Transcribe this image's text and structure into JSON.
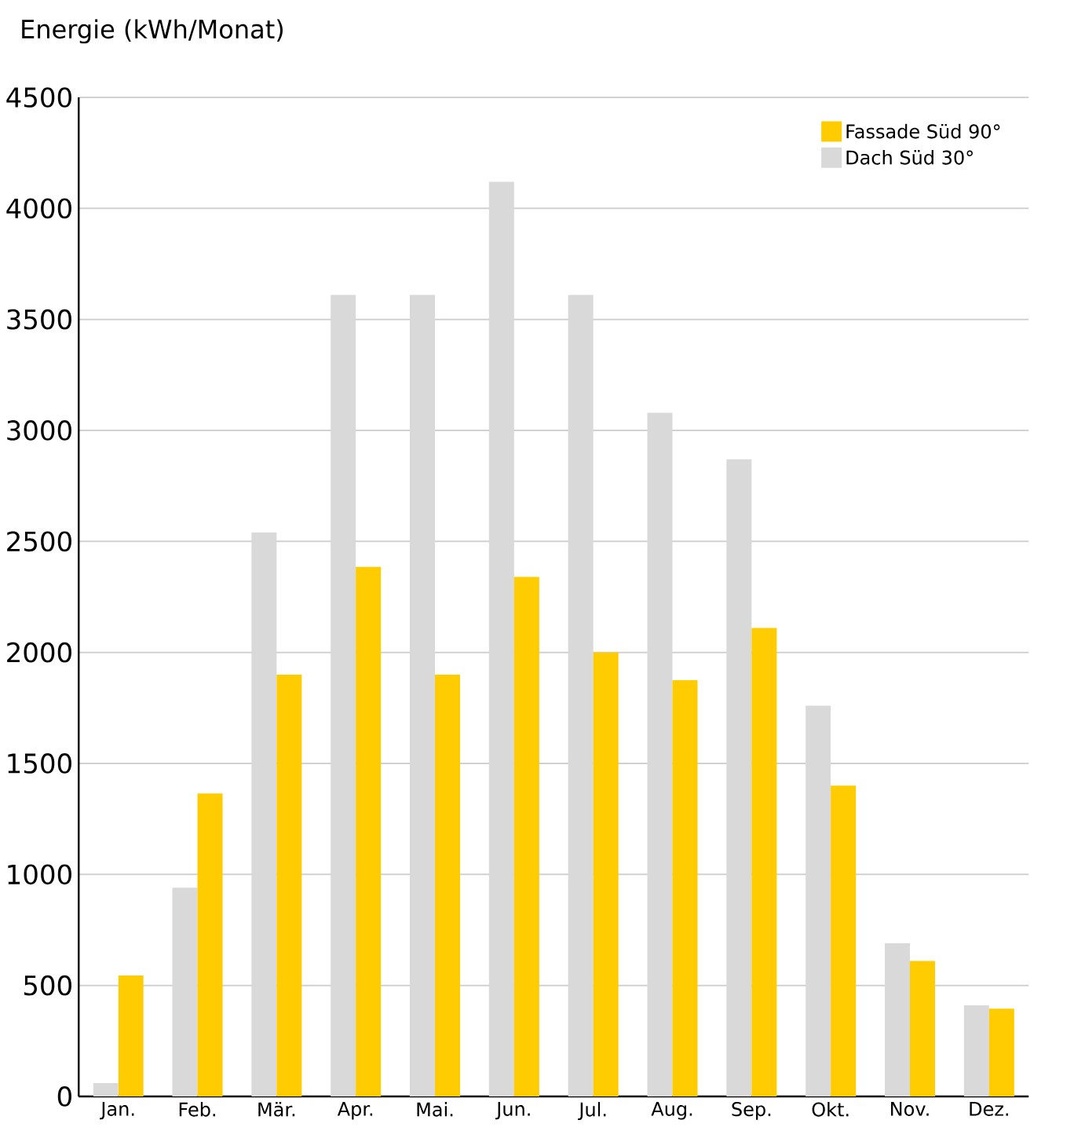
{
  "chart_data": {
    "type": "bar",
    "ylabel": "Energie (kWh/Monat)",
    "categories": [
      "Jan.",
      "Feb.",
      "Mär.",
      "Apr.",
      "Mai.",
      "Jun.",
      "Jul.",
      "Aug.",
      "Sep.",
      "Okt.",
      "Nov.",
      "Dez."
    ],
    "series": [
      {
        "name": "Dach Süd 30°",
        "color": "#d9d9d9",
        "values": [
          60,
          940,
          2540,
          3610,
          3610,
          4120,
          3610,
          3080,
          2870,
          1760,
          690,
          410
        ]
      },
      {
        "name": "Fassade Süd 90°",
        "color": "#fecc00",
        "values": [
          545,
          1365,
          1900,
          2385,
          1900,
          2340,
          2000,
          1875,
          2110,
          1400,
          610,
          395
        ]
      }
    ],
    "ylim": [
      0,
      4500
    ],
    "yticks": [
      0,
      500,
      1000,
      1500,
      2000,
      2500,
      3000,
      3500,
      4000,
      4500
    ],
    "grid": "y",
    "legend": "top right"
  }
}
